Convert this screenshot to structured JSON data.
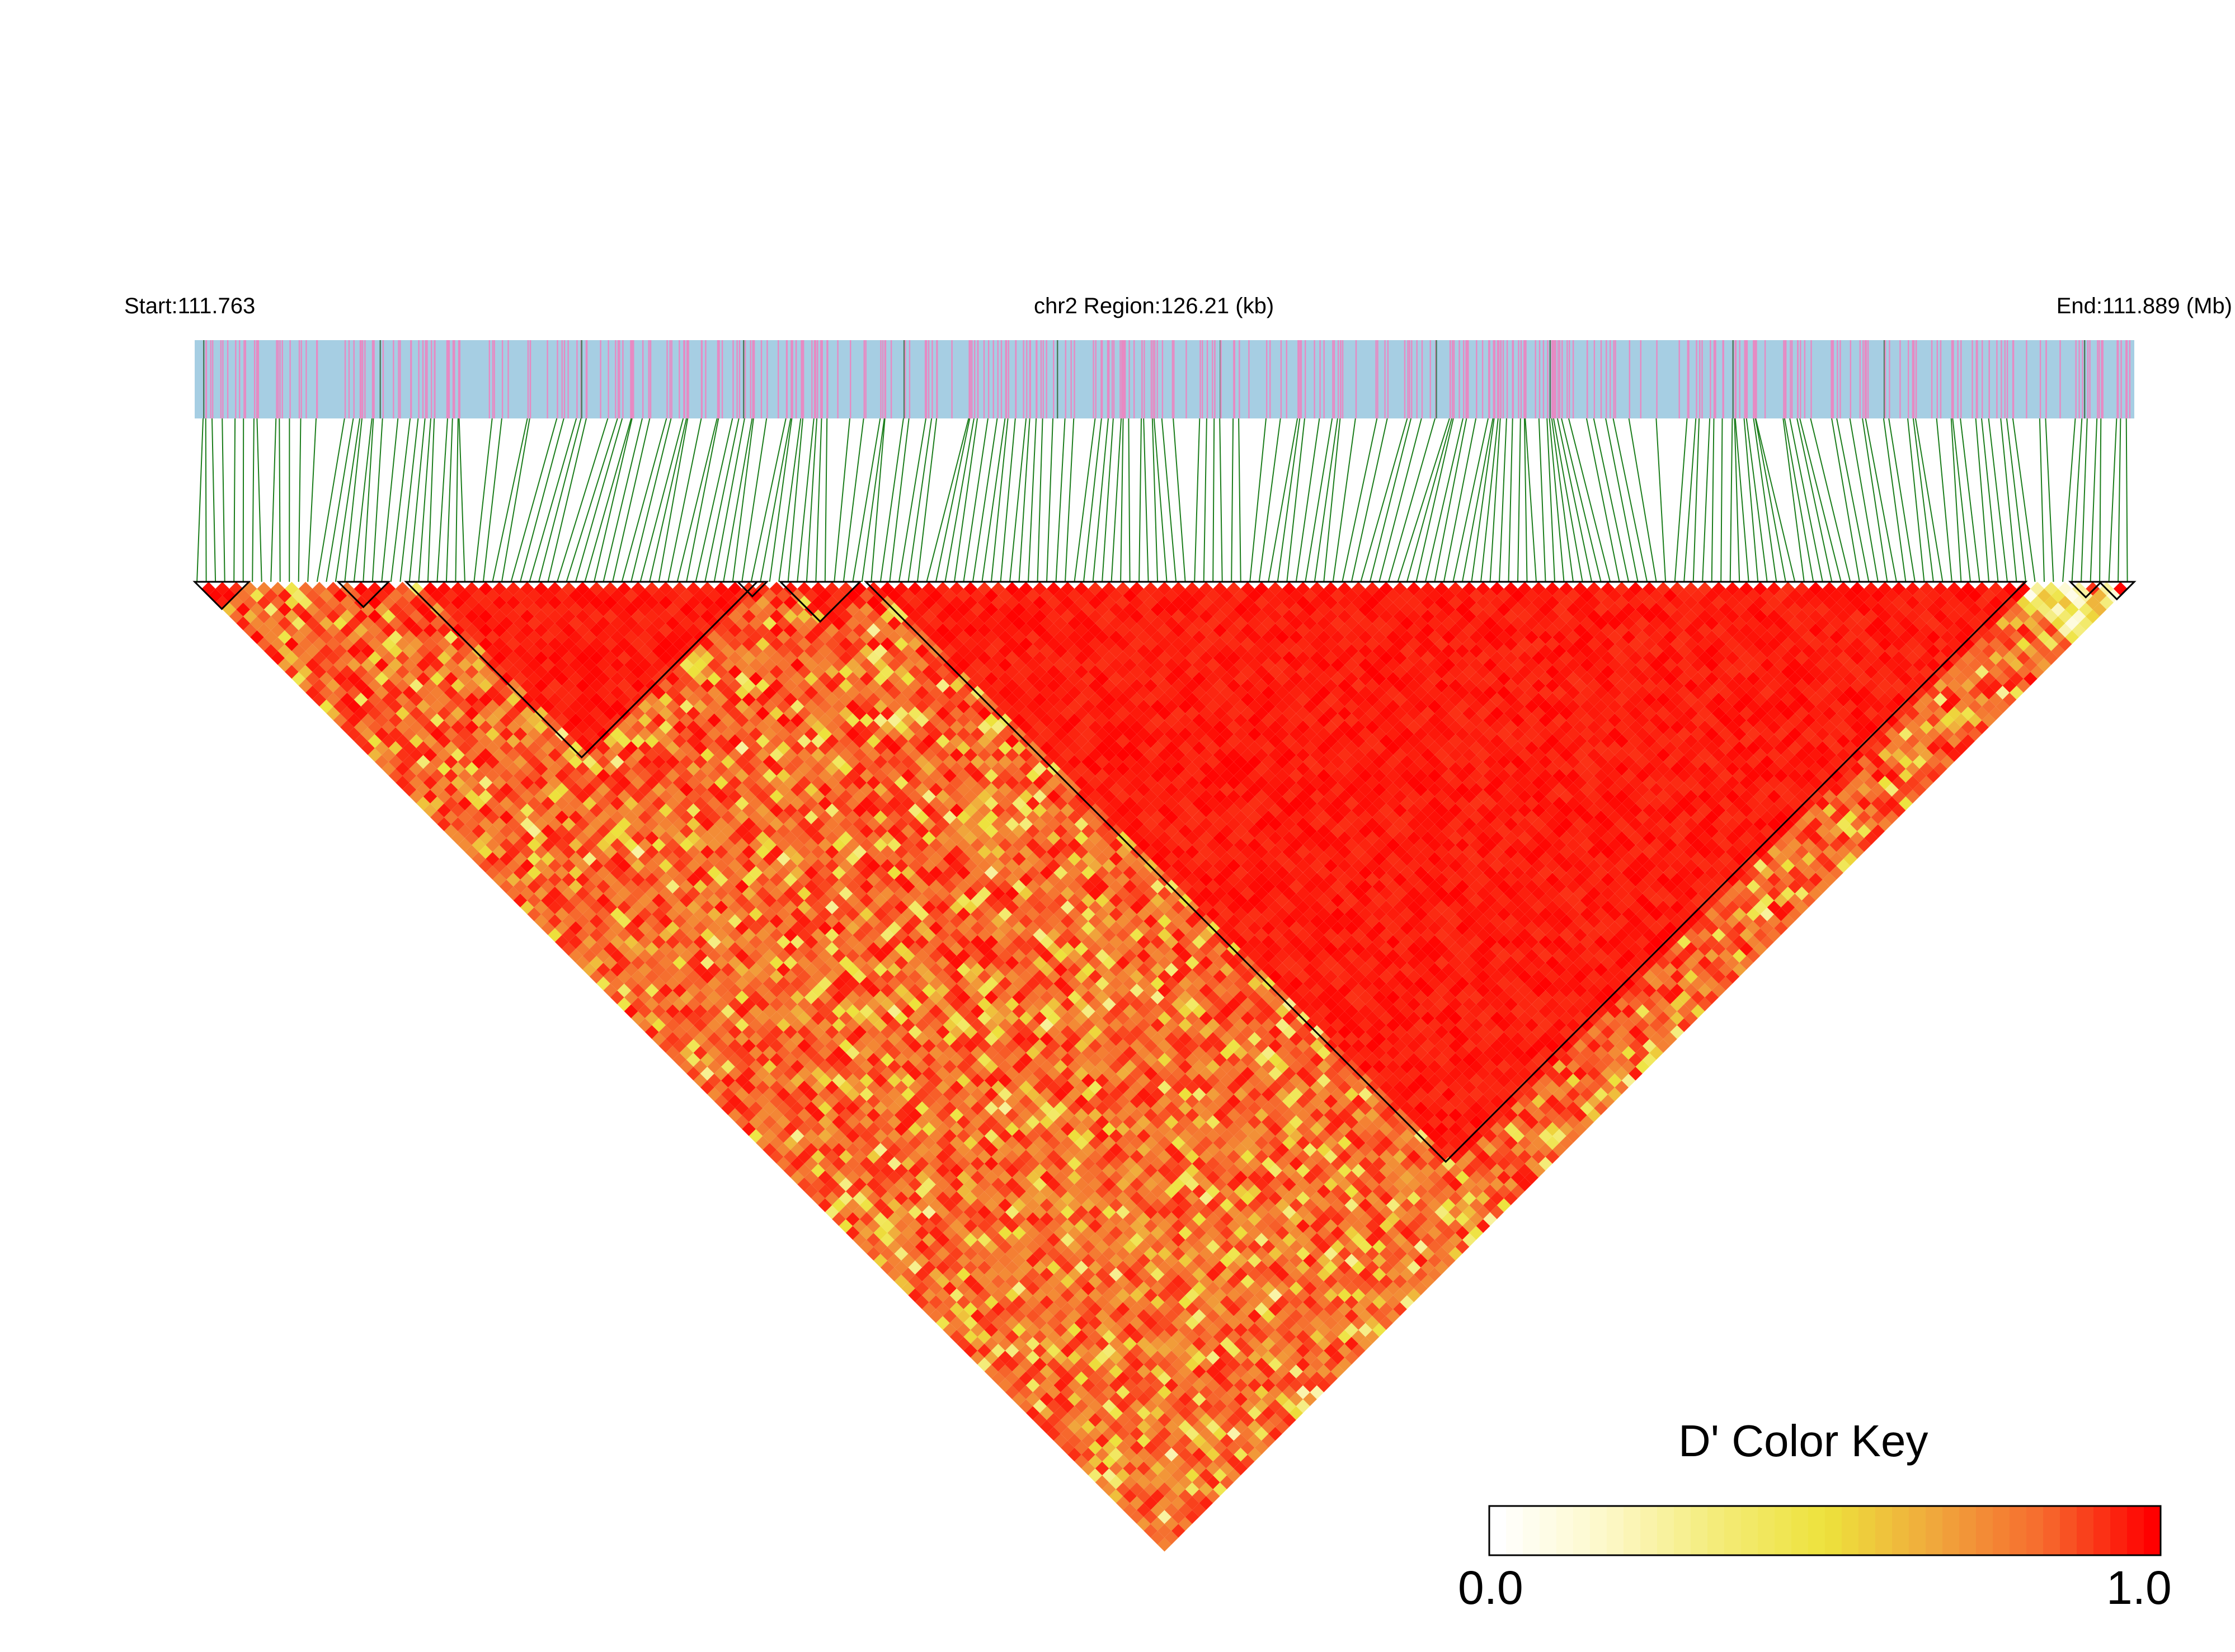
{
  "header": {
    "start_label": "Start:111.763",
    "region_label": "chr2 Region:126.21 (kb)",
    "end_label": "End:111.889 (Mb)"
  },
  "colors": {
    "snp_track_bg": "#a6cee3",
    "snp_mark": "#e78ac3",
    "snp_mark_dark": "#4a7a5a",
    "connector_line": "#1b7d1b",
    "ld_high": "#ff0000",
    "ld_mid": "#f7e84a",
    "ld_low": "#ffffff",
    "block_outline": "#000000"
  },
  "chart_data": {
    "type": "heatmap",
    "subtype": "LD triangle (D')",
    "chromosome": "chr2",
    "region_start_mb": 111.763,
    "region_end_mb": 111.889,
    "region_length_kb": 126.21,
    "n_snps_approx": 420,
    "grid": false,
    "color_key": {
      "title": "D' Color Key",
      "min": "0.0",
      "max": "1.0",
      "stops": [
        "#ffffff",
        "#fdf8c8",
        "#f4ec7a",
        "#ede23c",
        "#f0a83c",
        "#f66a2e",
        "#ff0000"
      ]
    },
    "ld_blocks": [
      {
        "from_snp_frac": 0.0,
        "to_snp_frac": 0.028
      },
      {
        "from_snp_frac": 0.074,
        "to_snp_frac": 0.1
      },
      {
        "from_snp_frac": 0.109,
        "to_snp_frac": 0.29
      },
      {
        "from_snp_frac": 0.28,
        "to_snp_frac": 0.295
      },
      {
        "from_snp_frac": 0.302,
        "to_snp_frac": 0.343
      },
      {
        "from_snp_frac": 0.346,
        "to_snp_frac": 0.944
      },
      {
        "from_snp_frac": 0.967,
        "to_snp_frac": 0.983
      },
      {
        "from_snp_frac": 0.982,
        "to_snp_frac": 1.0
      }
    ]
  }
}
